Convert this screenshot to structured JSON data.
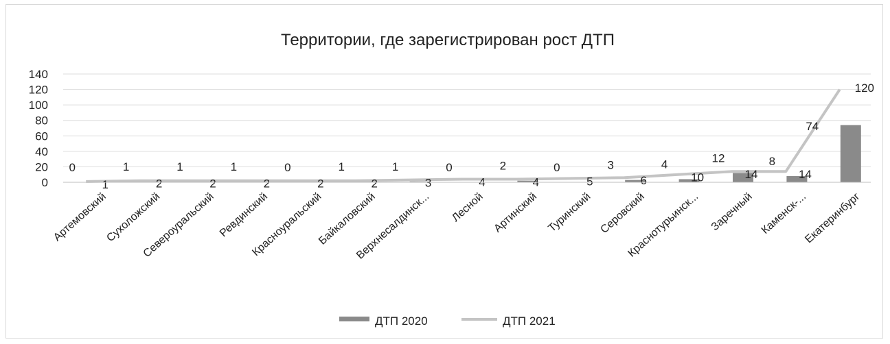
{
  "chart_data": {
    "type": "bar",
    "title": "Территории, где зарегистрирован рост ДТП",
    "categories": [
      "Артемовский",
      "Сухоложский",
      "Североуральский",
      "Ревдинский",
      "Красноуральский",
      "Байкаловский",
      "Верхнесалдинск...",
      "Лесной",
      "Артинский",
      "Туринский",
      "Серовский",
      "Краснотурьинск...",
      "Заречный",
      "Каменск-...",
      "Екатеринбург"
    ],
    "series": [
      {
        "name": "ДТП 2020",
        "kind": "bar",
        "color": "#8a8a8a",
        "values": [
          0,
          1,
          1,
          1,
          0,
          1,
          1,
          0,
          2,
          0,
          3,
          4,
          12,
          8,
          74
        ]
      },
      {
        "name": "ДТП 2021",
        "kind": "line",
        "color": "#c4c4c4",
        "values": [
          1,
          2,
          2,
          2,
          2,
          2,
          3,
          4,
          4,
          5,
          6,
          10,
          14,
          14,
          120
        ]
      }
    ],
    "ylim": [
      0,
      140
    ],
    "yticks": [
      "0",
      "20",
      "40",
      "60",
      "80",
      "100",
      "120",
      "140"
    ],
    "grid": true,
    "legend_position": "bottom"
  }
}
